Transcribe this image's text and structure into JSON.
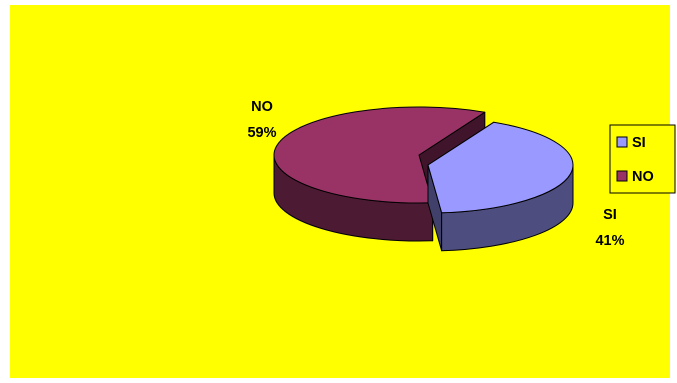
{
  "chart_data": {
    "type": "pie",
    "style": "3d-exploded",
    "background_color": "#FFFF00",
    "categories": [
      "SI",
      "NO"
    ],
    "values": [
      41,
      59
    ],
    "value_labels": [
      "41%",
      "59%"
    ],
    "colors": [
      "#9999FF",
      "#993366"
    ],
    "legend": {
      "placement": "right",
      "entries": [
        "SI",
        "NO"
      ]
    }
  }
}
